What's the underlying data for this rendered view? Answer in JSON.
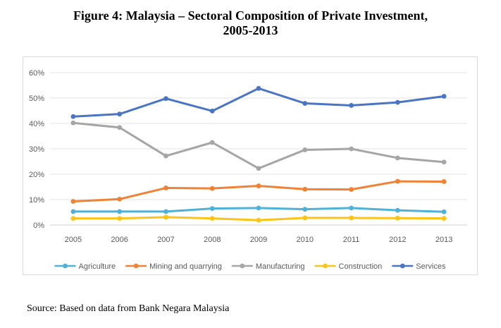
{
  "figure": {
    "title_line1": "Figure 4: Malaysia – Sectoral Composition of Private Investment,",
    "title_line2": "2005-2013",
    "source": "Source: Based on data from Bank Negara Malaysia"
  },
  "chart_data": {
    "type": "line",
    "title": "Figure 4: Malaysia – Sectoral Composition of Private Investment, 2005-2013",
    "xlabel": "",
    "ylabel": "",
    "x": [
      "2005",
      "2006",
      "2007",
      "2008",
      "2009",
      "2010",
      "2011",
      "2012",
      "2013"
    ],
    "ylim": [
      0,
      60
    ],
    "yticks": [
      "0%",
      "10%",
      "20%",
      "30%",
      "40%",
      "50%",
      "60%"
    ],
    "grid": true,
    "legend_position": "bottom",
    "series": [
      {
        "name": "Agriculture",
        "color": "#4fb1d8",
        "values": [
          5.3,
          5.3,
          5.3,
          6.5,
          6.7,
          6.2,
          6.7,
          5.8,
          5.2
        ]
      },
      {
        "name": "Mining and quarrying",
        "color": "#f08236",
        "values": [
          9.3,
          10.2,
          14.6,
          14.4,
          15.4,
          14.1,
          14.0,
          17.2,
          17.1
        ]
      },
      {
        "name": "Manufacturing",
        "color": "#a5a5a5",
        "values": [
          40.2,
          38.4,
          27.2,
          32.5,
          22.3,
          29.6,
          30.0,
          26.4,
          24.8
        ]
      },
      {
        "name": "Construction",
        "color": "#fcc419",
        "values": [
          2.6,
          2.6,
          3.1,
          2.6,
          1.9,
          2.8,
          2.8,
          2.7,
          2.6
        ]
      },
      {
        "name": "Services",
        "color": "#4a74c4",
        "values": [
          42.7,
          43.7,
          49.8,
          44.9,
          53.8,
          47.9,
          47.1,
          48.3,
          50.7
        ]
      }
    ]
  }
}
